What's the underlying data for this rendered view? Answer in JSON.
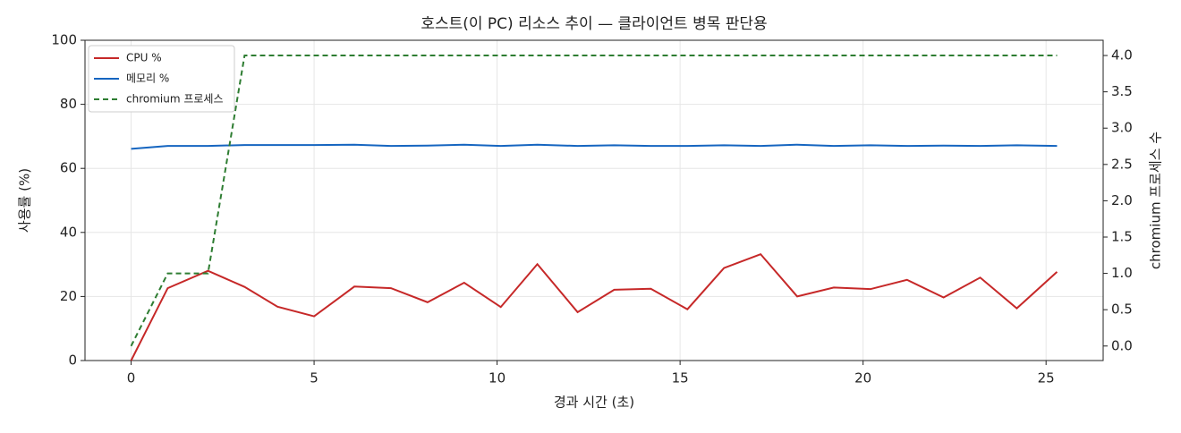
{
  "chart_data": {
    "type": "line",
    "title": "호스트(이 PC) 리소스 추이 — 클라이언트 병목 판단용",
    "x_label": "경과 시간 (초)",
    "y_label": "사용률 (%)",
    "y2_label": "chromium 프로세스 수",
    "x": [
      0,
      1.0,
      2.1,
      3.1,
      4.0,
      5.0,
      6.1,
      7.1,
      8.1,
      9.1,
      10.1,
      11.1,
      12.2,
      13.2,
      14.2,
      15.2,
      16.2,
      17.2,
      18.2,
      19.2,
      20.2,
      21.2,
      22.2,
      23.2,
      24.2,
      25.3
    ],
    "series": [
      {
        "name": "CPU %",
        "color": "#c62828",
        "linestyle": "solid",
        "axis": "y",
        "values": [
          0,
          22.6,
          28.0,
          23.0,
          16.8,
          13.8,
          23.1,
          22.6,
          18.2,
          24.3,
          16.7,
          30.1,
          15.1,
          22.1,
          22.4,
          16.0,
          28.9,
          33.2,
          20.0,
          22.8,
          22.3,
          25.2,
          19.7,
          25.9,
          16.3,
          27.7
        ]
      },
      {
        "name": "메모리 %",
        "color": "#1565c0",
        "linestyle": "solid",
        "axis": "y",
        "values": [
          66.1,
          67.0,
          67.0,
          67.3,
          67.3,
          67.3,
          67.4,
          67.0,
          67.1,
          67.4,
          67.0,
          67.4,
          67.0,
          67.2,
          67.0,
          67.0,
          67.2,
          67.0,
          67.4,
          67.0,
          67.2,
          67.0,
          67.1,
          67.0,
          67.2,
          67.0
        ]
      },
      {
        "name": "chromium 프로세스",
        "color": "#2e7d32",
        "linestyle": "dashed",
        "axis": "y2",
        "values": [
          0,
          1,
          1,
          4,
          4,
          4,
          4,
          4,
          4,
          4,
          4,
          4,
          4,
          4,
          4,
          4,
          4,
          4,
          4,
          4,
          4,
          4,
          4,
          4,
          4,
          4
        ]
      }
    ],
    "xlim": [
      -1.26,
      26.56
    ],
    "xticks": [
      0,
      5,
      10,
      15,
      20,
      25
    ],
    "ylim": [
      0,
      100
    ],
    "yticks": [
      0,
      20,
      40,
      60,
      80,
      100
    ],
    "y2lim": [
      -0.2,
      4.21
    ],
    "y2ticks": [
      {
        "value": 0,
        "label": "0.0"
      },
      {
        "value": 0.5,
        "label": "0.5"
      },
      {
        "value": 1,
        "label": "1.0"
      },
      {
        "value": 1.5,
        "label": "1.5"
      },
      {
        "value": 2,
        "label": "2.0"
      },
      {
        "value": 2.5,
        "label": "2.5"
      },
      {
        "value": 3,
        "label": "3.0"
      },
      {
        "value": 3.5,
        "label": "3.5"
      },
      {
        "value": 4,
        "label": "4.0"
      }
    ],
    "grid": true,
    "legend": "upper-left"
  }
}
